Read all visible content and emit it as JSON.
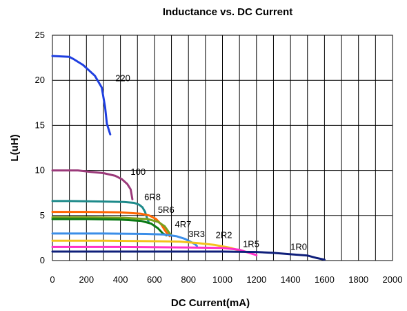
{
  "chart_data": {
    "type": "line",
    "title": "Inductance vs. DC Current",
    "xlabel": "DC Current(mA)",
    "ylabel": "L(uH)",
    "xlim": [
      0,
      2000
    ],
    "ylim": [
      0,
      25
    ],
    "xticks": [
      0,
      200,
      400,
      600,
      800,
      1000,
      1200,
      1400,
      1600,
      1800,
      2000
    ],
    "yticks": [
      0,
      5,
      10,
      15,
      20,
      25
    ],
    "x_grid_step": 100,
    "grid": true,
    "legend": "none",
    "series": [
      {
        "name": "220",
        "color": "#1f3fe0",
        "label_at": [
          370,
          20.2
        ],
        "x": [
          0,
          100,
          120,
          180,
          250,
          290,
          310,
          320,
          330,
          340
        ],
        "y": [
          22.7,
          22.6,
          22.4,
          21.7,
          20.5,
          19.2,
          17.0,
          15.2,
          14.6,
          14.0
        ]
      },
      {
        "name": "100",
        "color": "#9b3a7a",
        "label_at": [
          460,
          9.8
        ],
        "x": [
          0,
          150,
          220,
          300,
          370,
          410,
          440,
          460,
          470
        ],
        "y": [
          10.0,
          10.0,
          9.85,
          9.7,
          9.4,
          9.0,
          8.5,
          7.9,
          6.8
        ]
      },
      {
        "name": "6R8",
        "color": "#1d8a8a",
        "label_at": [
          540,
          7.0
        ],
        "x": [
          0,
          100,
          300,
          420,
          480,
          510,
          530,
          545,
          555,
          565
        ],
        "y": [
          6.6,
          6.6,
          6.55,
          6.5,
          6.4,
          6.2,
          5.9,
          5.4,
          4.8,
          4.3
        ]
      },
      {
        "name": "5R6",
        "color": "#ff6600",
        "label_at": [
          620,
          5.6
        ],
        "x": [
          0,
          200,
          400,
          520,
          570,
          610,
          640,
          660,
          675,
          690
        ],
        "y": [
          5.4,
          5.4,
          5.35,
          5.2,
          5.0,
          4.6,
          4.0,
          3.4,
          3.0,
          2.7
        ]
      },
      {
        "name": "4R7",
        "color": "#7aa01e",
        "label_at": [
          720,
          4.0
        ],
        "x": [
          0,
          200,
          420,
          560,
          620,
          660,
          690,
          700
        ],
        "y": [
          4.8,
          4.8,
          4.75,
          4.6,
          4.3,
          3.8,
          3.0,
          2.8
        ]
      },
      {
        "name": "4R7",
        "color": "#0b7a14",
        "label_at": null,
        "x": [
          0,
          200,
          400,
          520,
          580,
          620,
          650,
          670
        ],
        "y": [
          4.6,
          4.6,
          4.55,
          4.4,
          4.1,
          3.6,
          3.0,
          2.8
        ]
      },
      {
        "name": "3R3",
        "color": "#3b8ee8",
        "label_at": [
          800,
          2.9
        ],
        "x": [
          0,
          300,
          550,
          650,
          730,
          780,
          810,
          840,
          850
        ],
        "y": [
          3.0,
          3.0,
          2.95,
          2.9,
          2.7,
          2.4,
          2.1,
          1.8,
          1.6
        ]
      },
      {
        "name": "2R2",
        "color": "#f4c21b",
        "label_at": [
          960,
          2.8
        ],
        "x": [
          0,
          300,
          600,
          750,
          850,
          950,
          1050,
          1100,
          1150
        ],
        "y": [
          2.2,
          2.2,
          2.15,
          2.1,
          1.95,
          1.75,
          1.4,
          1.1,
          0.9
        ]
      },
      {
        "name": "1R5",
        "color": "#ff2fc8",
        "label_at": [
          1120,
          1.8
        ],
        "x": [
          0,
          400,
          800,
          1000,
          1100,
          1150,
          1200
        ],
        "y": [
          1.5,
          1.5,
          1.45,
          1.4,
          1.2,
          0.9,
          0.6
        ]
      },
      {
        "name": "1R0",
        "color": "#0f1f7a",
        "label_at": [
          1400,
          1.5
        ],
        "x": [
          0,
          500,
          1000,
          1200,
          1300,
          1400,
          1500,
          1550,
          1600
        ],
        "y": [
          1.0,
          1.0,
          1.0,
          0.95,
          0.85,
          0.7,
          0.55,
          0.3,
          0.1
        ]
      }
    ]
  }
}
